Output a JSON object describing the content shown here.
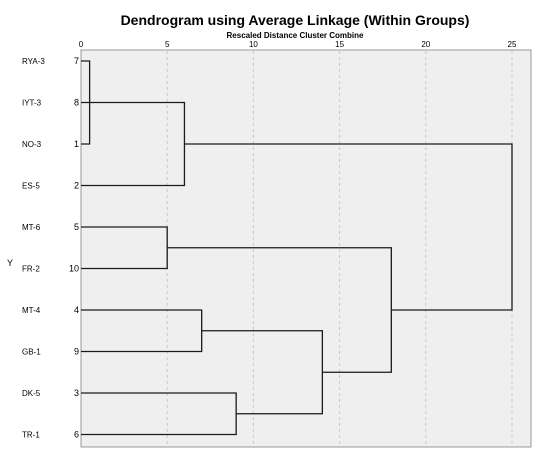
{
  "chart_data": {
    "type": "dendrogram",
    "title": "Dendrogram using Average Linkage (Within Groups)",
    "subtitle": "Rescaled Distance Cluster Combine",
    "ylabel": "Y",
    "xticks": [
      0,
      5,
      10,
      15,
      20,
      25
    ],
    "xlim": [
      0,
      25
    ],
    "grid": true,
    "leaves": [
      {
        "label": "RYA-3",
        "id": "7"
      },
      {
        "label": "IYT-3",
        "id": "8"
      },
      {
        "label": "NO-3",
        "id": "1"
      },
      {
        "label": "ES-5",
        "id": "2"
      },
      {
        "label": "MT-6",
        "id": "5"
      },
      {
        "label": "FR-2",
        "id": "10"
      },
      {
        "label": "MT-4",
        "id": "4"
      },
      {
        "label": "GB-1",
        "id": "9"
      },
      {
        "label": "DK-5",
        "id": "3"
      },
      {
        "label": "TR-1",
        "id": "6"
      }
    ],
    "merges": [
      {
        "a": "L0",
        "b": "L2",
        "height": 0.5
      },
      {
        "a": "L1",
        "b": "M0",
        "height": 1.0
      },
      {
        "a": "M1",
        "b": "L3",
        "height": 6.0
      },
      {
        "a": "L4",
        "b": "L5",
        "height": 5.0
      },
      {
        "a": "L6",
        "b": "L7",
        "height": 7.0
      },
      {
        "a": "L8",
        "b": "L9",
        "height": 9.0
      },
      {
        "a": "M4",
        "b": "M5",
        "height": 14.0
      },
      {
        "a": "M3",
        "b": "M6",
        "height": 18.0
      },
      {
        "a": "M2",
        "b": "M7",
        "height": 25.0
      }
    ]
  }
}
